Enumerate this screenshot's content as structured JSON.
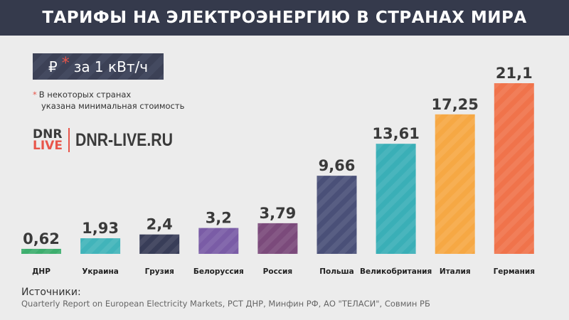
{
  "header": {
    "title": "ТАРИФЫ НА ЭЛЕКТРОЭНЕРГИЮ В СТРАНАХ МИРА"
  },
  "unit": {
    "currency": "₽",
    "asterisk": "*",
    "label": "за 1 кВт/ч"
  },
  "note": {
    "asterisk": "*",
    "line1": "В некоторых странах",
    "line2": "указана минимальная стоимость"
  },
  "logo": {
    "mark_top": "DNR",
    "mark_bottom": "LIVE",
    "site": "DNR-LIVE.RU"
  },
  "sources": {
    "heading": "Источники:",
    "text": "Quarterly Report on European Electricity Markets, РСТ ДНР, Минфин РФ, АО \"ТЕЛАСИ\", Совмин РБ"
  },
  "chart_data": {
    "type": "bar",
    "title": "ТАРИФЫ НА ЭЛЕКТРОЭНЕРГИЮ В СТРАНАХ МИРА",
    "ylabel": "₽ за 1 кВт/ч",
    "categories": [
      "ДНР",
      "Украина",
      "Грузия",
      "Белоруссия",
      "Россия",
      "Польша",
      "Великобритания",
      "Италия",
      "Германия"
    ],
    "values": [
      0.62,
      1.93,
      2.4,
      3.2,
      3.79,
      9.66,
      13.61,
      17.25,
      21.1
    ],
    "labels": [
      "0,62",
      "1,93",
      "2,4",
      "3,2",
      "3,79",
      "9,66",
      "13,61",
      "17,25",
      "21,1"
    ],
    "colors": [
      "#3dae6e",
      "#41b4ba",
      "#383d58",
      "#7a5ca6",
      "#7b4a7b",
      "#4a5078",
      "#3aafb7",
      "#f6a844",
      "#f0734b"
    ],
    "ylim": [
      0,
      21.1
    ],
    "grid": false
  }
}
